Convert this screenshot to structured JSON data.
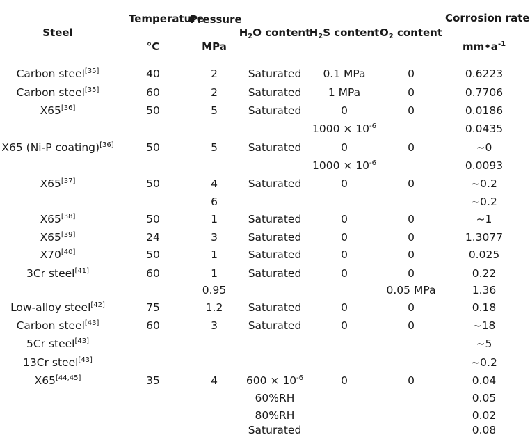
{
  "headers": {
    "steel": "Steel",
    "temperature": "Temperature",
    "temperature_unit": "°C",
    "pressure": "Pressure",
    "pressure_unit": "MPa",
    "h2o_pre": "H",
    "h2o_sub": "2",
    "h2o_post": "O content",
    "h2s_pre": "H",
    "h2s_sub": "2",
    "h2s_post": "S content",
    "o2_pre": "O",
    "o2_sub": "2",
    "o2_post": " content",
    "corrosion": "Corrosion rate",
    "corrosion_unit_pre": "mm•a",
    "corrosion_unit_sup": "-1"
  },
  "rows": [
    {
      "steel": "Carbon steel",
      "ref": "[35]",
      "temp": "40",
      "pressure": "2",
      "h2o": "Saturated",
      "h2s": "0.1 MPa",
      "o2": "0",
      "rate": "0.6223"
    },
    {
      "steel": "Carbon steel",
      "ref": "[35]",
      "temp": "60",
      "pressure": "2",
      "h2o": "Saturated",
      "h2s": "1 MPa",
      "o2": "0",
      "rate": "0.7706"
    },
    {
      "steel": "X65",
      "ref": "[36]",
      "temp": "50",
      "pressure": "5",
      "h2o": "Saturated",
      "h2s": "0",
      "o2": "0",
      "rate": "0.0186"
    },
    {
      "steel": "",
      "ref": "",
      "temp": "",
      "pressure": "",
      "h2o": "",
      "h2s": "1000 × 10",
      "h2s_sup": "-6",
      "o2": "",
      "rate": "0.0435"
    },
    {
      "steel": "X65 (Ni-P coating)",
      "ref": "[36]",
      "temp": "50",
      "pressure": "5",
      "h2o": "Saturated",
      "h2s": "0",
      "o2": "0",
      "rate": "~0"
    },
    {
      "steel": "",
      "ref": "",
      "temp": "",
      "pressure": "",
      "h2o": "",
      "h2s": "1000 × 10",
      "h2s_sup": "-6",
      "o2": "",
      "rate": "0.0093"
    },
    {
      "steel": "X65",
      "ref": "[37]",
      "temp": "50",
      "pressure": "4",
      "h2o": "Saturated",
      "h2s": "0",
      "o2": "0",
      "rate": "~0.2"
    },
    {
      "steel": "",
      "ref": "",
      "temp": "",
      "pressure": "6",
      "h2o": "",
      "h2s": "",
      "o2": "",
      "rate": "~0.2"
    },
    {
      "steel": "X65",
      "ref": "[38]",
      "temp": "50",
      "pressure": "1",
      "h2o": "Saturated",
      "h2s": "0",
      "o2": "0",
      "rate": "~1"
    },
    {
      "steel": "X65",
      "ref": "[39]",
      "temp": "24",
      "pressure": "3",
      "h2o": "Saturated",
      "h2s": "0",
      "o2": "0",
      "rate": "1.3077"
    },
    {
      "steel": "X70",
      "ref": "[40]",
      "temp": "50",
      "pressure": "1",
      "h2o": "Saturated",
      "h2s": "0",
      "o2": "0",
      "rate": "0.025"
    },
    {
      "steel": "3Cr steel",
      "ref": "[41]",
      "temp": "60",
      "pressure": "1",
      "h2o": "Saturated",
      "h2s": "0",
      "o2": "0",
      "rate": "0.22"
    },
    {
      "steel": "",
      "ref": "",
      "temp": "",
      "pressure": "0.95",
      "h2o": "",
      "h2s": "",
      "o2": "0.05 MPa",
      "rate": "1.36"
    },
    {
      "steel": "Low-alloy steel",
      "ref": "[42]",
      "temp": "75",
      "pressure": "1.2",
      "h2o": "Saturated",
      "h2s": "0",
      "o2": "0",
      "rate": "0.18"
    },
    {
      "steel": "Carbon steel",
      "ref": "[43]",
      "temp": "60",
      "pressure": "3",
      "h2o": "Saturated",
      "h2s": "0",
      "o2": "0",
      "rate": "~18"
    },
    {
      "steel": "5Cr steel",
      "ref": "[43]",
      "temp": "",
      "pressure": "",
      "h2o": "",
      "h2s": "",
      "o2": "",
      "rate": "~5"
    },
    {
      "steel": "13Cr steel",
      "ref": "[43]",
      "temp": "",
      "pressure": "",
      "h2o": "",
      "h2s": "",
      "o2": "",
      "rate": "~0.2"
    },
    {
      "steel": "X65",
      "ref": "[44,45]",
      "temp": "35",
      "pressure": "4",
      "h2o": "600 × 10",
      "h2o_sup": "-6",
      "h2s": "0",
      "o2": "0",
      "rate": "0.04"
    },
    {
      "steel": "",
      "ref": "",
      "temp": "",
      "pressure": "",
      "h2o": "60%RH",
      "h2s": "",
      "o2": "",
      "rate": "0.05"
    },
    {
      "steel": "",
      "ref": "",
      "temp": "",
      "pressure": "",
      "h2o": "80%RH",
      "h2s": "",
      "o2": "",
      "rate": "0.02"
    },
    {
      "steel": "",
      "ref": "",
      "temp": "",
      "pressure": "",
      "h2o": "Saturated",
      "h2s": "",
      "o2": "",
      "rate": "0.08"
    }
  ]
}
